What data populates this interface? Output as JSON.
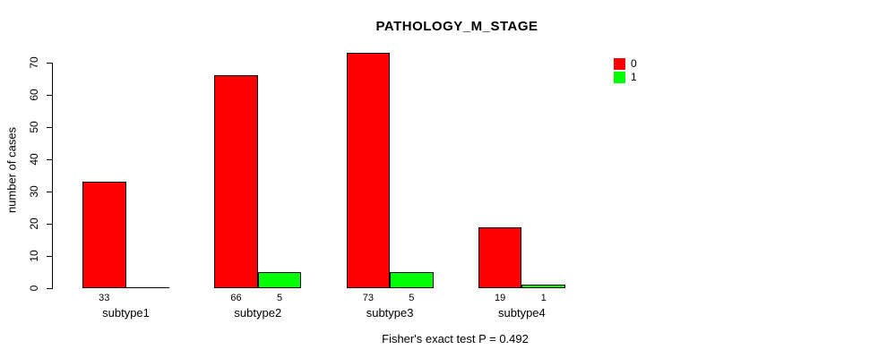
{
  "chart_data": {
    "type": "bar",
    "title": "PATHOLOGY_M_STAGE",
    "categories": [
      "subtype1",
      "subtype2",
      "subtype3",
      "subtype4"
    ],
    "series": [
      {
        "name": "0",
        "color": "#ff0000",
        "values": [
          33,
          66,
          73,
          19
        ],
        "bar_labels": [
          "33",
          "66",
          "73",
          "19"
        ]
      },
      {
        "name": "1",
        "color": "#00ff00",
        "values": [
          0,
          5,
          5,
          1
        ],
        "bar_labels": [
          "",
          "5",
          "5",
          "1"
        ]
      }
    ],
    "xlabel": "",
    "ylabel": "number of cases",
    "yticks": [
      0,
      10,
      20,
      30,
      40,
      50,
      60,
      70
    ],
    "ylim": [
      0,
      76
    ],
    "grid": false,
    "bar_outline_color": "#000000",
    "legend_position": "topright",
    "annotation": "Fisher's exact test P = 0.492"
  }
}
